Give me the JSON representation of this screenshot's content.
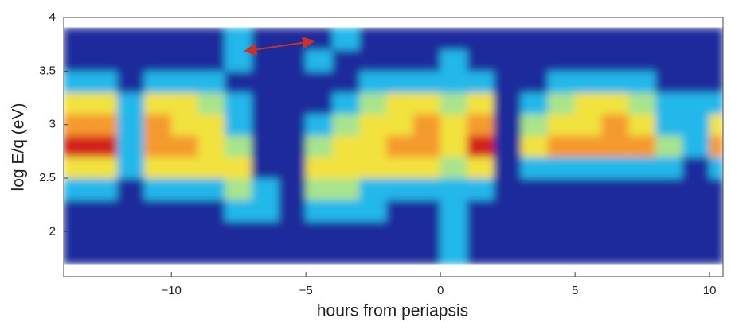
{
  "chart_data": {
    "type": "heatmap",
    "xlabel": "hours from periapsis",
    "ylabel": "log E/q (eV)",
    "xlim": [
      -14,
      10.5
    ],
    "ylim": [
      1.58,
      4
    ],
    "xticks": [
      {
        "value": -10,
        "label": "−10"
      },
      {
        "value": -5,
        "label": "−5"
      },
      0,
      5,
      10
    ],
    "yticks": [
      2,
      2.5,
      3,
      3.5,
      4
    ],
    "xbins": [
      -14,
      -13,
      -12,
      -11,
      -10,
      -9,
      -8,
      -7,
      -6,
      -5,
      -4,
      -3,
      -2,
      -1,
      0,
      1,
      2,
      3,
      4,
      5,
      6,
      7,
      8,
      9,
      10,
      10.5
    ],
    "ybins": [
      1.7,
      1.9,
      2.1,
      2.3,
      2.5,
      2.7,
      2.9,
      3.1,
      3.3,
      3.5,
      3.7,
      3.9
    ],
    "colors": [
      "#1c2b9c",
      "#22b8ea",
      "#a8e48c",
      "#f2e23e",
      "#f59a2e",
      "#d3241c"
    ],
    "values": [
      [
        0,
        0,
        0,
        1,
        3,
        5,
        4,
        3,
        1,
        0,
        0
      ],
      [
        0,
        0,
        0,
        1,
        3,
        5,
        4,
        3,
        1,
        0,
        0
      ],
      [
        0,
        0,
        0,
        0,
        1,
        1,
        1,
        1,
        0,
        0,
        0
      ],
      [
        0,
        0,
        0,
        1,
        3,
        4,
        4,
        3,
        1,
        0,
        0
      ],
      [
        0,
        0,
        0,
        1,
        3,
        4,
        3,
        3,
        1,
        0,
        0
      ],
      [
        0,
        0,
        0,
        1,
        3,
        3,
        3,
        2,
        1,
        0,
        0
      ],
      [
        0,
        0,
        1,
        2,
        3,
        2,
        1,
        1,
        0,
        1,
        1
      ],
      [
        0,
        0,
        1,
        1,
        0,
        0,
        0,
        0,
        0,
        0,
        0
      ],
      [
        0,
        0,
        0,
        0,
        0,
        0,
        0,
        0,
        0,
        0,
        0
      ],
      [
        0,
        0,
        1,
        2,
        3,
        2,
        1,
        0,
        0,
        1,
        0
      ],
      [
        0,
        0,
        1,
        2,
        3,
        3,
        2,
        1,
        0,
        0,
        1
      ],
      [
        0,
        0,
        1,
        1,
        3,
        3,
        3,
        2,
        1,
        0,
        0
      ],
      [
        0,
        0,
        0,
        1,
        3,
        4,
        3,
        3,
        1,
        0,
        0
      ],
      [
        0,
        0,
        0,
        1,
        3,
        4,
        4,
        3,
        1,
        0,
        0
      ],
      [
        1,
        1,
        1,
        1,
        2,
        3,
        3,
        2,
        1,
        1,
        0
      ],
      [
        0,
        0,
        0,
        1,
        3,
        5,
        4,
        3,
        1,
        0,
        0
      ],
      [
        0,
        0,
        0,
        0,
        0,
        0,
        0,
        0,
        0,
        0,
        0
      ],
      [
        0,
        0,
        0,
        0,
        1,
        3,
        2,
        1,
        0,
        0,
        0
      ],
      [
        0,
        0,
        0,
        0,
        1,
        4,
        3,
        2,
        1,
        0,
        0
      ],
      [
        0,
        0,
        0,
        0,
        1,
        4,
        3,
        3,
        1,
        0,
        0
      ],
      [
        0,
        0,
        0,
        0,
        1,
        4,
        4,
        3,
        1,
        0,
        0
      ],
      [
        0,
        0,
        0,
        0,
        1,
        4,
        3,
        2,
        1,
        0,
        0
      ],
      [
        0,
        0,
        0,
        0,
        1,
        2,
        1,
        1,
        0,
        0,
        0
      ],
      [
        0,
        0,
        0,
        0,
        0,
        1,
        1,
        1,
        0,
        0,
        0
      ],
      [
        0,
        0,
        0,
        0,
        1,
        4,
        3,
        1,
        0,
        0,
        0
      ]
    ]
  }
}
